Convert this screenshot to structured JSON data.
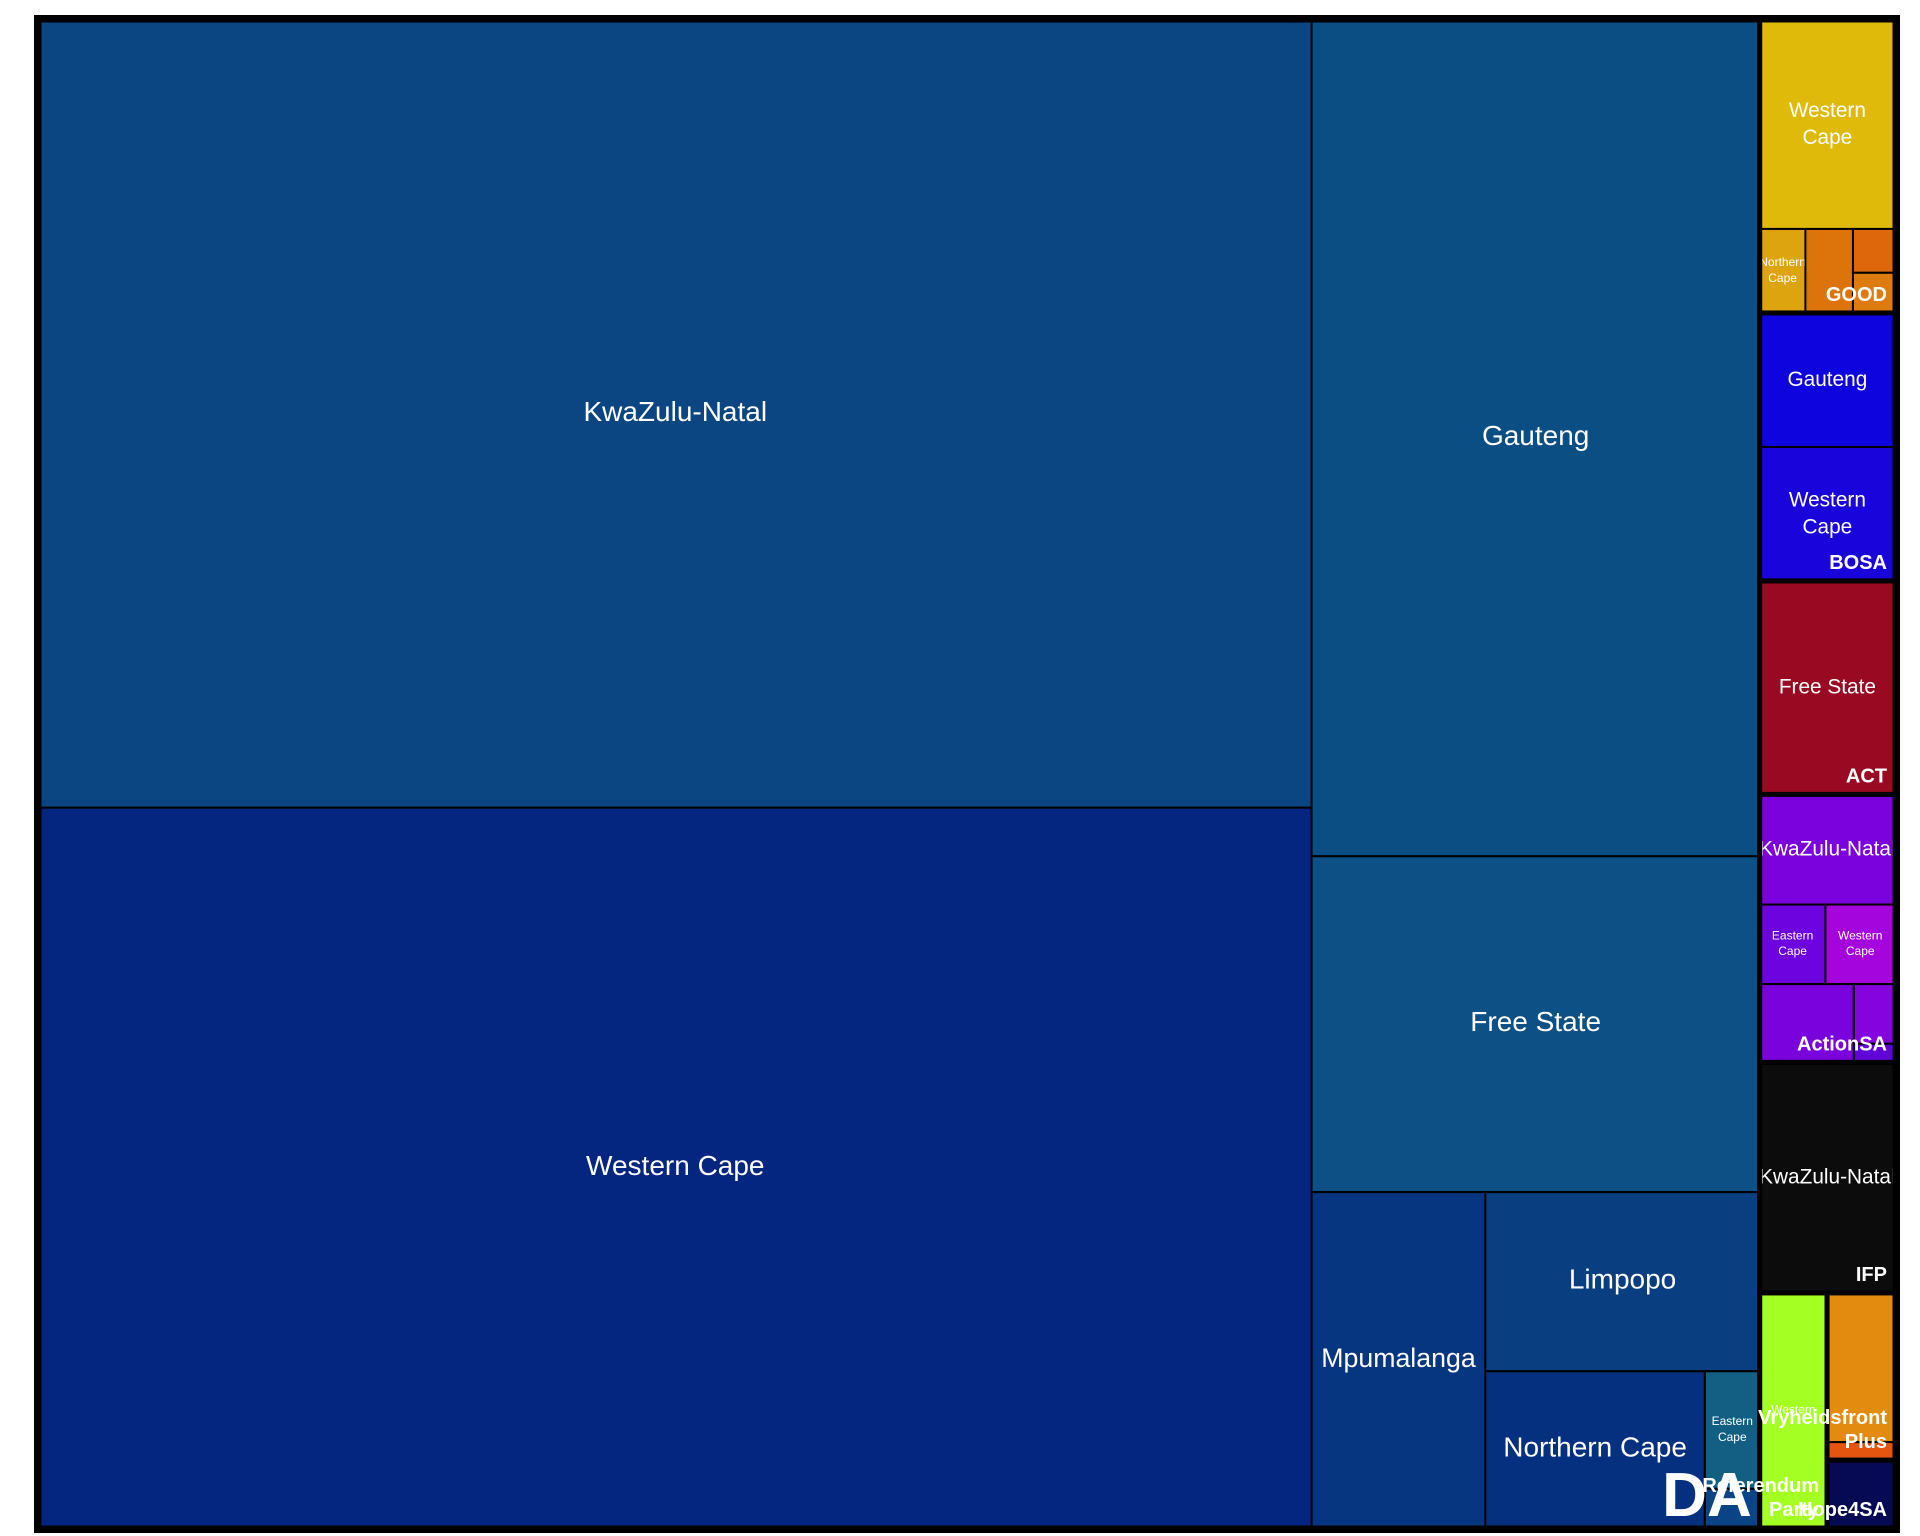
{
  "chart_data": {
    "type": "treemap",
    "title": "",
    "value_units": "votes",
    "parties": [
      {
        "name": "DA",
        "color": "#0B4582",
        "provinces": [
          {
            "name": "KwaZulu-Natal",
            "value": 326300,
            "color": "#0B4582"
          },
          {
            "name": "Western Cape",
            "value": 298400,
            "color": "#042580"
          },
          {
            "name": "Gauteng",
            "value": 122000,
            "color": "#0B4E84"
          },
          {
            "name": "Free State",
            "value": 49000,
            "color": "#0C5085"
          },
          {
            "name": "Mpumalanga",
            "value": 19000,
            "color": "#073680"
          },
          {
            "name": "Limpopo",
            "value": 16000,
            "color": "#093F81"
          },
          {
            "name": "Northern Cape",
            "value": 11200,
            "color": "#05307F"
          },
          {
            "name": "Eastern Cape",
            "value": 2100,
            "color": "#135F84"
          },
          {
            "name": "",
            "value": 700,
            "color": "#0A4486"
          }
        ]
      },
      {
        "name": "GOOD",
        "color": "#E0BA0B",
        "provinces": [
          {
            "name": "Western Cape",
            "value": 9200,
            "color": "#E0BA0B"
          },
          {
            "name": "Northern Cape",
            "value": 1250,
            "color": "#DDA40F"
          },
          {
            "name": "",
            "value": 1300,
            "color": "#DD740B"
          },
          {
            "name": "",
            "value": 600,
            "color": "#DD670A"
          },
          {
            "name": "",
            "value": 550,
            "color": "#DD7B0E"
          }
        ]
      },
      {
        "name": "BOSA",
        "color": "#0E04DE",
        "provinces": [
          {
            "name": "Gauteng",
            "value": 5900,
            "color": "#0E04DE"
          },
          {
            "name": "Western Cape",
            "value": 5900,
            "color": "#1A04DC"
          }
        ]
      },
      {
        "name": "ACT",
        "color": "#990A22",
        "provinces": [
          {
            "name": "Free State",
            "value": 9400,
            "color": "#990A22"
          }
        ]
      },
      {
        "name": "ActionSA",
        "color": "#7B02DD",
        "provinces": [
          {
            "name": "KwaZulu-Natal",
            "value": 4850,
            "color": "#7B02DD"
          },
          {
            "name": "Eastern Cape",
            "value": 1700,
            "color": "#6D03DE"
          },
          {
            "name": "Western Cape",
            "value": 1800,
            "color": "#A505DD"
          },
          {
            "name": "",
            "value": 2400,
            "color": "#7A03DD"
          },
          {
            "name": "",
            "value": 800,
            "color": "#8503DD"
          },
          {
            "name": "",
            "value": 250,
            "color": "#6004D8"
          }
        ]
      },
      {
        "name": "IFP",
        "color": "#0C0C0C",
        "provinces": [
          {
            "name": "KwaZulu-Natal",
            "value": 10150,
            "color": "#0C0C0C"
          }
        ]
      },
      {
        "name": "Referendum Party",
        "color": "#A4FF22",
        "provinces": [
          {
            "name": "Western",
            "value": 5150,
            "color": "#A4FF22"
          }
        ]
      },
      {
        "name": "Vryheidsfront Plus",
        "color": "#E38B0E",
        "provinces": [
          {
            "name": "",
            "value": 3300,
            "color": "#E38B0E"
          },
          {
            "name": "",
            "value": 400,
            "color": "#E55510"
          }
        ]
      },
      {
        "name": "Hope4SA",
        "color": "#060A55",
        "provinces": [
          {
            "name": "",
            "value": 1500,
            "color": "#060A55"
          }
        ]
      }
    ]
  }
}
